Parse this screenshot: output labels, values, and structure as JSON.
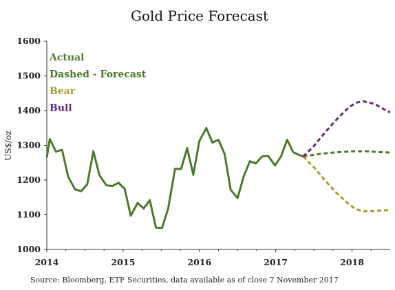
{
  "chart_data": {
    "type": "line",
    "title": "Gold Price Forecast",
    "ylabel": "US$/oz",
    "xlabel": "",
    "ylim": [
      1000,
      1600
    ],
    "yticks": [
      1000,
      1100,
      1200,
      1300,
      1400,
      1500,
      1600
    ],
    "xlim": [
      2014.0,
      2018.5
    ],
    "xticks": [
      {
        "value": 2014,
        "label": "2014"
      },
      {
        "value": 2015,
        "label": "2015"
      },
      {
        "value": 2016,
        "label": "2016"
      },
      {
        "value": 2017,
        "label": "2017"
      },
      {
        "value": 2018,
        "label": "2018"
      }
    ],
    "grid": false,
    "legend": [
      {
        "text": "Actual",
        "color": "#4a7a2a"
      },
      {
        "text": "Dashed - Forecast",
        "color": "#4a7a2a"
      },
      {
        "text": "Bear",
        "color": "#a89a2a"
      },
      {
        "text": "Bull",
        "color": "#6a2a7a"
      }
    ],
    "legend_placement": "top-left",
    "series": [
      {
        "name": "Actual",
        "color": "#4a7a2a",
        "style": "solid",
        "x": [
          2014.0,
          2014.04,
          2014.12,
          2014.2,
          2014.28,
          2014.37,
          2014.45,
          2014.53,
          2014.61,
          2014.69,
          2014.78,
          2014.86,
          2014.94,
          2015.02,
          2015.1,
          2015.19,
          2015.27,
          2015.35,
          2015.43,
          2015.51,
          2015.59,
          2015.68,
          2015.76,
          2015.84,
          2015.92,
          2016.0,
          2016.09,
          2016.17,
          2016.25,
          2016.33,
          2016.41,
          2016.5,
          2016.58,
          2016.66,
          2016.74,
          2016.82,
          2016.9,
          2016.99,
          2017.07,
          2017.15,
          2017.23,
          2017.31,
          2017.36
        ],
        "y": [
          1265,
          1318,
          1282,
          1287,
          1210,
          1173,
          1168,
          1188,
          1283,
          1214,
          1185,
          1183,
          1192,
          1175,
          1097,
          1134,
          1118,
          1142,
          1063,
          1062,
          1117,
          1232,
          1232,
          1292,
          1215,
          1313,
          1350,
          1308,
          1316,
          1275,
          1172,
          1148,
          1210,
          1254,
          1248,
          1268,
          1270,
          1242,
          1268,
          1316,
          1280,
          1272,
          1268
        ]
      },
      {
        "name": "Dashed - Forecast",
        "color": "#4a7a2a",
        "style": "dashed",
        "x": [
          2017.36,
          2017.6,
          2017.8,
          2018.0,
          2018.2,
          2018.4,
          2018.5
        ],
        "y": [
          1268,
          1276,
          1280,
          1283,
          1283,
          1280,
          1279
        ]
      },
      {
        "name": "Bear",
        "color": "#a89a2a",
        "style": "dashed",
        "x": [
          2017.36,
          2017.5,
          2017.65,
          2017.8,
          2017.95,
          2018.05,
          2018.15,
          2018.3,
          2018.45,
          2018.5
        ],
        "y": [
          1268,
          1237,
          1198,
          1162,
          1132,
          1116,
          1110,
          1111,
          1113,
          1113
        ]
      },
      {
        "name": "Bull",
        "color": "#6a2a7a",
        "style": "dashed",
        "x": [
          2017.36,
          2017.5,
          2017.65,
          2017.8,
          2017.95,
          2018.05,
          2018.15,
          2018.3,
          2018.45,
          2018.5
        ],
        "y": [
          1268,
          1298,
          1338,
          1375,
          1408,
          1423,
          1427,
          1419,
          1400,
          1395
        ]
      }
    ]
  },
  "footer": {
    "source": "Source: Bloomberg, ETF Securities, data available as of close 7 November 2017"
  }
}
